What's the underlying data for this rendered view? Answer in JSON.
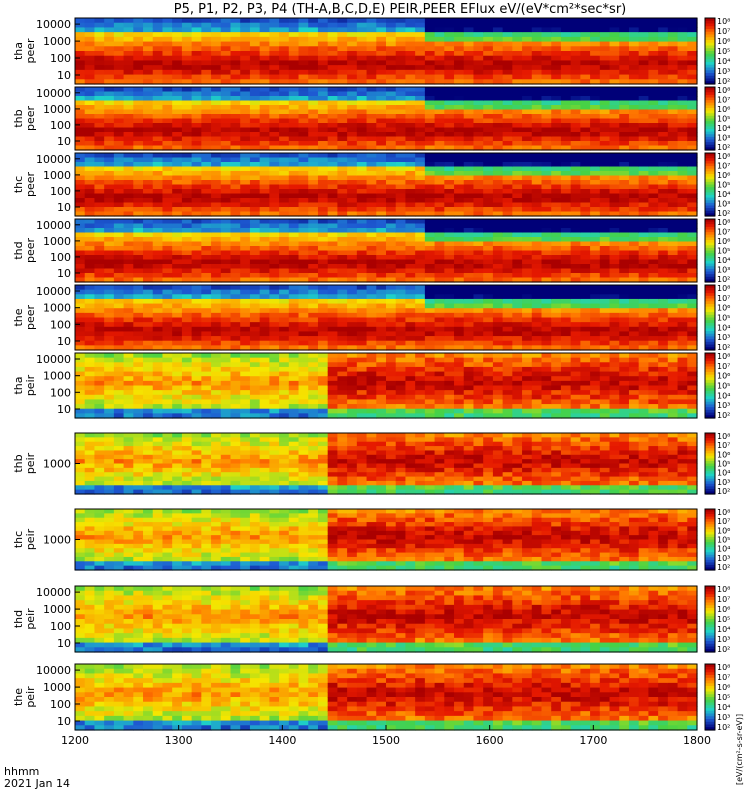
{
  "chart_data": {
    "type": "heatmap",
    "title": "P5, P1, P2, P3, P4 (TH-A,B,C,D,E) PEIR,PEER EFlux eV/(eV*cm²*sec*sr)",
    "xlabel": "hhmm",
    "date_label": "2021 Jan 14",
    "xlim": [
      1200,
      1800
    ],
    "x_ticks": [
      "1200",
      "1300",
      "1400",
      "1500",
      "1600",
      "1700",
      "1800"
    ],
    "colorbar_label": "[eV/(cm²-s-sr-eV)]",
    "colorbar_ticks": [
      "10²",
      "10³",
      "10⁴",
      "10⁵",
      "10⁶",
      "10⁷",
      "10⁸"
    ],
    "panels": [
      {
        "probe": "tha",
        "species": "peer",
        "y_ticks": [
          "10000",
          "1000",
          "100",
          "10"
        ]
      },
      {
        "probe": "thb",
        "species": "peer",
        "y_ticks": [
          "10000",
          "1000",
          "100",
          "10"
        ]
      },
      {
        "probe": "thc",
        "species": "peer",
        "y_ticks": [
          "10000",
          "1000",
          "100",
          "10"
        ]
      },
      {
        "probe": "thd",
        "species": "peer",
        "y_ticks": [
          "10000",
          "1000",
          "100",
          "10"
        ]
      },
      {
        "probe": "the",
        "species": "peer",
        "y_ticks": [
          "10000",
          "1000",
          "100",
          "10"
        ]
      },
      {
        "probe": "tha",
        "species": "peir",
        "y_ticks": [
          "10000",
          "1000",
          "100",
          "10"
        ]
      },
      {
        "probe": "thb",
        "species": "peir",
        "y_ticks": [
          "1000"
        ]
      },
      {
        "probe": "thc",
        "species": "peir",
        "y_ticks": [
          "1000"
        ]
      },
      {
        "probe": "thd",
        "species": "peir",
        "y_ticks": [
          "10000",
          "1000",
          "100",
          "10"
        ]
      },
      {
        "probe": "the",
        "species": "peir",
        "y_ticks": [
          "10000",
          "1000",
          "100",
          "10"
        ]
      }
    ],
    "colors": {
      "dark_red": "#b00000",
      "red": "#e81a00",
      "orange": "#ff7a00",
      "yellow": "#f4e600",
      "green": "#4cd24c",
      "cyan": "#1ed2c8",
      "blue": "#1e5ad2",
      "black": "#000000"
    }
  }
}
